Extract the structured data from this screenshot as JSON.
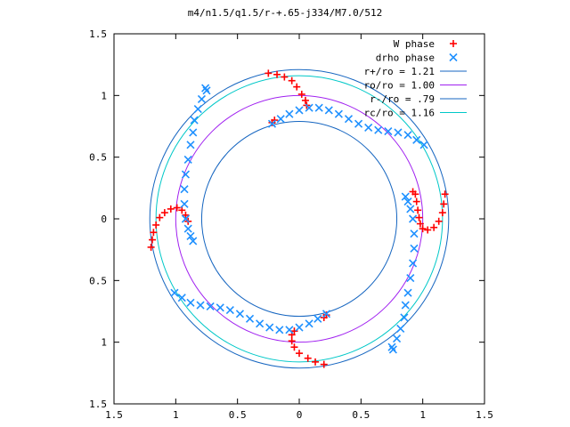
{
  "chart_data": {
    "type": "scatter",
    "title": "m4/n1.5/q1.5/r-+.65-j334/M7.0/512",
    "xlabel": "",
    "ylabel": "",
    "xlim": [
      -1.5,
      1.5
    ],
    "ylim": [
      -1.5,
      1.5
    ],
    "x_ticks": [
      "1.5",
      "1",
      "0.5",
      "0",
      "0.5",
      "1",
      "1.5"
    ],
    "y_ticks": [
      "1.5",
      "1",
      "0.5",
      "0",
      "0.5",
      "1",
      "1.5"
    ],
    "grid": false,
    "legend_position": "top-right",
    "series": [
      {
        "name": "W phase",
        "kind": "points",
        "marker": "plus",
        "color": "#ff0000",
        "points": [
          [
            -0.25,
            1.18
          ],
          [
            -0.18,
            1.17
          ],
          [
            -0.12,
            1.15
          ],
          [
            -0.06,
            1.12
          ],
          [
            -0.02,
            1.07
          ],
          [
            0.02,
            1.01
          ],
          [
            0.05,
            0.96
          ],
          [
            0.06,
            0.92
          ],
          [
            -0.22,
            0.78
          ],
          [
            -0.2,
            0.8
          ],
          [
            0.94,
            0.2
          ],
          [
            0.95,
            0.14
          ],
          [
            0.96,
            0.07
          ],
          [
            0.97,
            0.01
          ],
          [
            0.98,
            -0.04
          ],
          [
            1.0,
            -0.08
          ],
          [
            1.04,
            -0.09
          ],
          [
            1.09,
            -0.07
          ],
          [
            1.13,
            -0.02
          ],
          [
            1.16,
            0.05
          ],
          [
            1.17,
            0.12
          ],
          [
            1.18,
            0.2
          ],
          [
            0.92,
            0.22
          ],
          [
            0.2,
            -1.18
          ],
          [
            0.13,
            -1.16
          ],
          [
            0.07,
            -1.13
          ],
          [
            0.0,
            -1.09
          ],
          [
            -0.04,
            -1.04
          ],
          [
            -0.06,
            -0.99
          ],
          [
            -0.06,
            -0.94
          ],
          [
            -0.04,
            -0.91
          ],
          [
            0.2,
            -0.8
          ],
          [
            0.22,
            -0.78
          ],
          [
            -1.2,
            -0.23
          ],
          [
            -1.19,
            -0.17
          ],
          [
            -1.18,
            -0.11
          ],
          [
            -1.16,
            -0.05
          ],
          [
            -1.13,
            0.01
          ],
          [
            -1.09,
            0.05
          ],
          [
            -1.04,
            0.08
          ],
          [
            -0.99,
            0.09
          ],
          [
            -0.95,
            0.07
          ],
          [
            -0.92,
            0.03
          ],
          [
            -0.9,
            -0.02
          ]
        ]
      },
      {
        "name": "drho phase",
        "kind": "points",
        "marker": "cross",
        "color": "#1e90ff",
        "points": [
          [
            -0.22,
            0.77
          ],
          [
            -0.15,
            0.81
          ],
          [
            -0.08,
            0.85
          ],
          [
            0.0,
            0.88
          ],
          [
            0.08,
            0.9
          ],
          [
            0.16,
            0.9
          ],
          [
            0.24,
            0.88
          ],
          [
            0.32,
            0.85
          ],
          [
            0.4,
            0.81
          ],
          [
            0.48,
            0.77
          ],
          [
            0.56,
            0.74
          ],
          [
            0.64,
            0.72
          ],
          [
            0.72,
            0.71
          ],
          [
            0.8,
            0.7
          ],
          [
            0.88,
            0.68
          ],
          [
            0.95,
            0.64
          ],
          [
            1.01,
            0.6
          ],
          [
            0.75,
            -1.04
          ],
          [
            0.79,
            -0.97
          ],
          [
            0.82,
            -0.89
          ],
          [
            0.85,
            -0.8
          ],
          [
            0.86,
            -0.7
          ],
          [
            0.88,
            -0.6
          ],
          [
            0.9,
            -0.48
          ],
          [
            0.92,
            -0.36
          ],
          [
            0.93,
            -0.24
          ],
          [
            0.93,
            -0.12
          ],
          [
            0.92,
            0.0
          ],
          [
            0.9,
            0.08
          ],
          [
            0.88,
            0.14
          ],
          [
            0.86,
            0.18
          ],
          [
            0.22,
            -0.77
          ],
          [
            0.15,
            -0.81
          ],
          [
            0.08,
            -0.85
          ],
          [
            0.0,
            -0.88
          ],
          [
            -0.08,
            -0.9
          ],
          [
            -0.16,
            -0.9
          ],
          [
            -0.24,
            -0.88
          ],
          [
            -0.32,
            -0.85
          ],
          [
            -0.4,
            -0.81
          ],
          [
            -0.48,
            -0.77
          ],
          [
            -0.56,
            -0.74
          ],
          [
            -0.64,
            -0.72
          ],
          [
            -0.72,
            -0.71
          ],
          [
            -0.8,
            -0.7
          ],
          [
            -0.88,
            -0.68
          ],
          [
            -0.95,
            -0.64
          ],
          [
            -1.01,
            -0.6
          ],
          [
            -0.75,
            1.04
          ],
          [
            -0.79,
            0.97
          ],
          [
            -0.82,
            0.89
          ],
          [
            -0.85,
            0.8
          ],
          [
            -0.86,
            0.7
          ],
          [
            -0.88,
            0.6
          ],
          [
            -0.9,
            0.48
          ],
          [
            -0.92,
            0.36
          ],
          [
            -0.93,
            0.24
          ],
          [
            -0.93,
            0.12
          ],
          [
            -0.92,
            0.0
          ],
          [
            -0.9,
            -0.08
          ],
          [
            -0.88,
            -0.14
          ],
          [
            -0.86,
            -0.18
          ],
          [
            -0.76,
            1.06
          ],
          [
            0.76,
            -1.06
          ]
        ]
      },
      {
        "name": "r+/ro = 1.21",
        "kind": "circle",
        "radius": 1.21,
        "color": "#1565c0"
      },
      {
        "name": "ro/ro = 1.00",
        "kind": "circle",
        "radius": 1.0,
        "color": "#a020f0"
      },
      {
        "name": "r-/ro = .79",
        "kind": "circle",
        "radius": 0.79,
        "color": "#1565c0"
      },
      {
        "name": "rc/ro = 1.16",
        "kind": "circle",
        "radius": 1.16,
        "color": "#00c8c8"
      }
    ]
  }
}
